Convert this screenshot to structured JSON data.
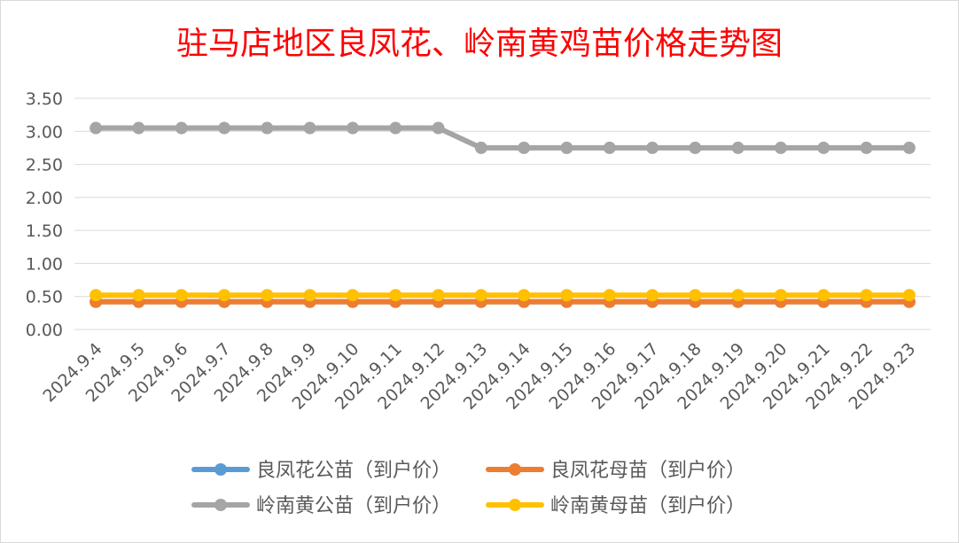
{
  "chart_data": {
    "type": "line",
    "title": "驻马店地区良凤花、岭南黄鸡苗价格走势图",
    "categories": [
      "2024.9.4",
      "2024.9.5",
      "2024.9.6",
      "2024.9.7",
      "2024.9.8",
      "2024.9.9",
      "2024.9.10",
      "2024.9.11",
      "2024.9.12",
      "2024.9.13",
      "2024.9.14",
      "2024.9.15",
      "2024.9.16",
      "2024.9.17",
      "2024.9.18",
      "2024.9.19",
      "2024.9.20",
      "2024.9.21",
      "2024.9.22",
      "2024.9.23"
    ],
    "ylim": [
      0,
      3.5
    ],
    "yticks": [
      "0.00",
      "0.50",
      "1.00",
      "1.50",
      "2.00",
      "2.50",
      "3.00",
      "3.50"
    ],
    "grid": true,
    "legend_position": "bottom",
    "series": [
      {
        "name": "良凤花公苗（到户价）",
        "color": "#5b9bd5",
        "values": [
          0.42,
          0.42,
          0.42,
          0.42,
          0.42,
          0.42,
          0.42,
          0.42,
          0.42,
          0.42,
          0.42,
          0.42,
          0.42,
          0.42,
          0.42,
          0.42,
          0.42,
          0.42,
          0.42,
          0.42
        ]
      },
      {
        "name": "良凤花母苗（到户价）",
        "color": "#ed7d31",
        "values": [
          0.42,
          0.42,
          0.42,
          0.42,
          0.42,
          0.42,
          0.42,
          0.42,
          0.42,
          0.42,
          0.42,
          0.42,
          0.42,
          0.42,
          0.42,
          0.42,
          0.42,
          0.42,
          0.42,
          0.42
        ]
      },
      {
        "name": "岭南黄公苗（到户价）",
        "color": "#a5a5a5",
        "values": [
          3.05,
          3.05,
          3.05,
          3.05,
          3.05,
          3.05,
          3.05,
          3.05,
          3.05,
          2.75,
          2.75,
          2.75,
          2.75,
          2.75,
          2.75,
          2.75,
          2.75,
          2.75,
          2.75,
          2.75
        ]
      },
      {
        "name": "岭南黄母苗（到户价）",
        "color": "#ffc000",
        "values": [
          0.52,
          0.52,
          0.52,
          0.52,
          0.52,
          0.52,
          0.52,
          0.52,
          0.52,
          0.52,
          0.52,
          0.52,
          0.52,
          0.52,
          0.52,
          0.52,
          0.52,
          0.52,
          0.52,
          0.52
        ]
      }
    ]
  }
}
